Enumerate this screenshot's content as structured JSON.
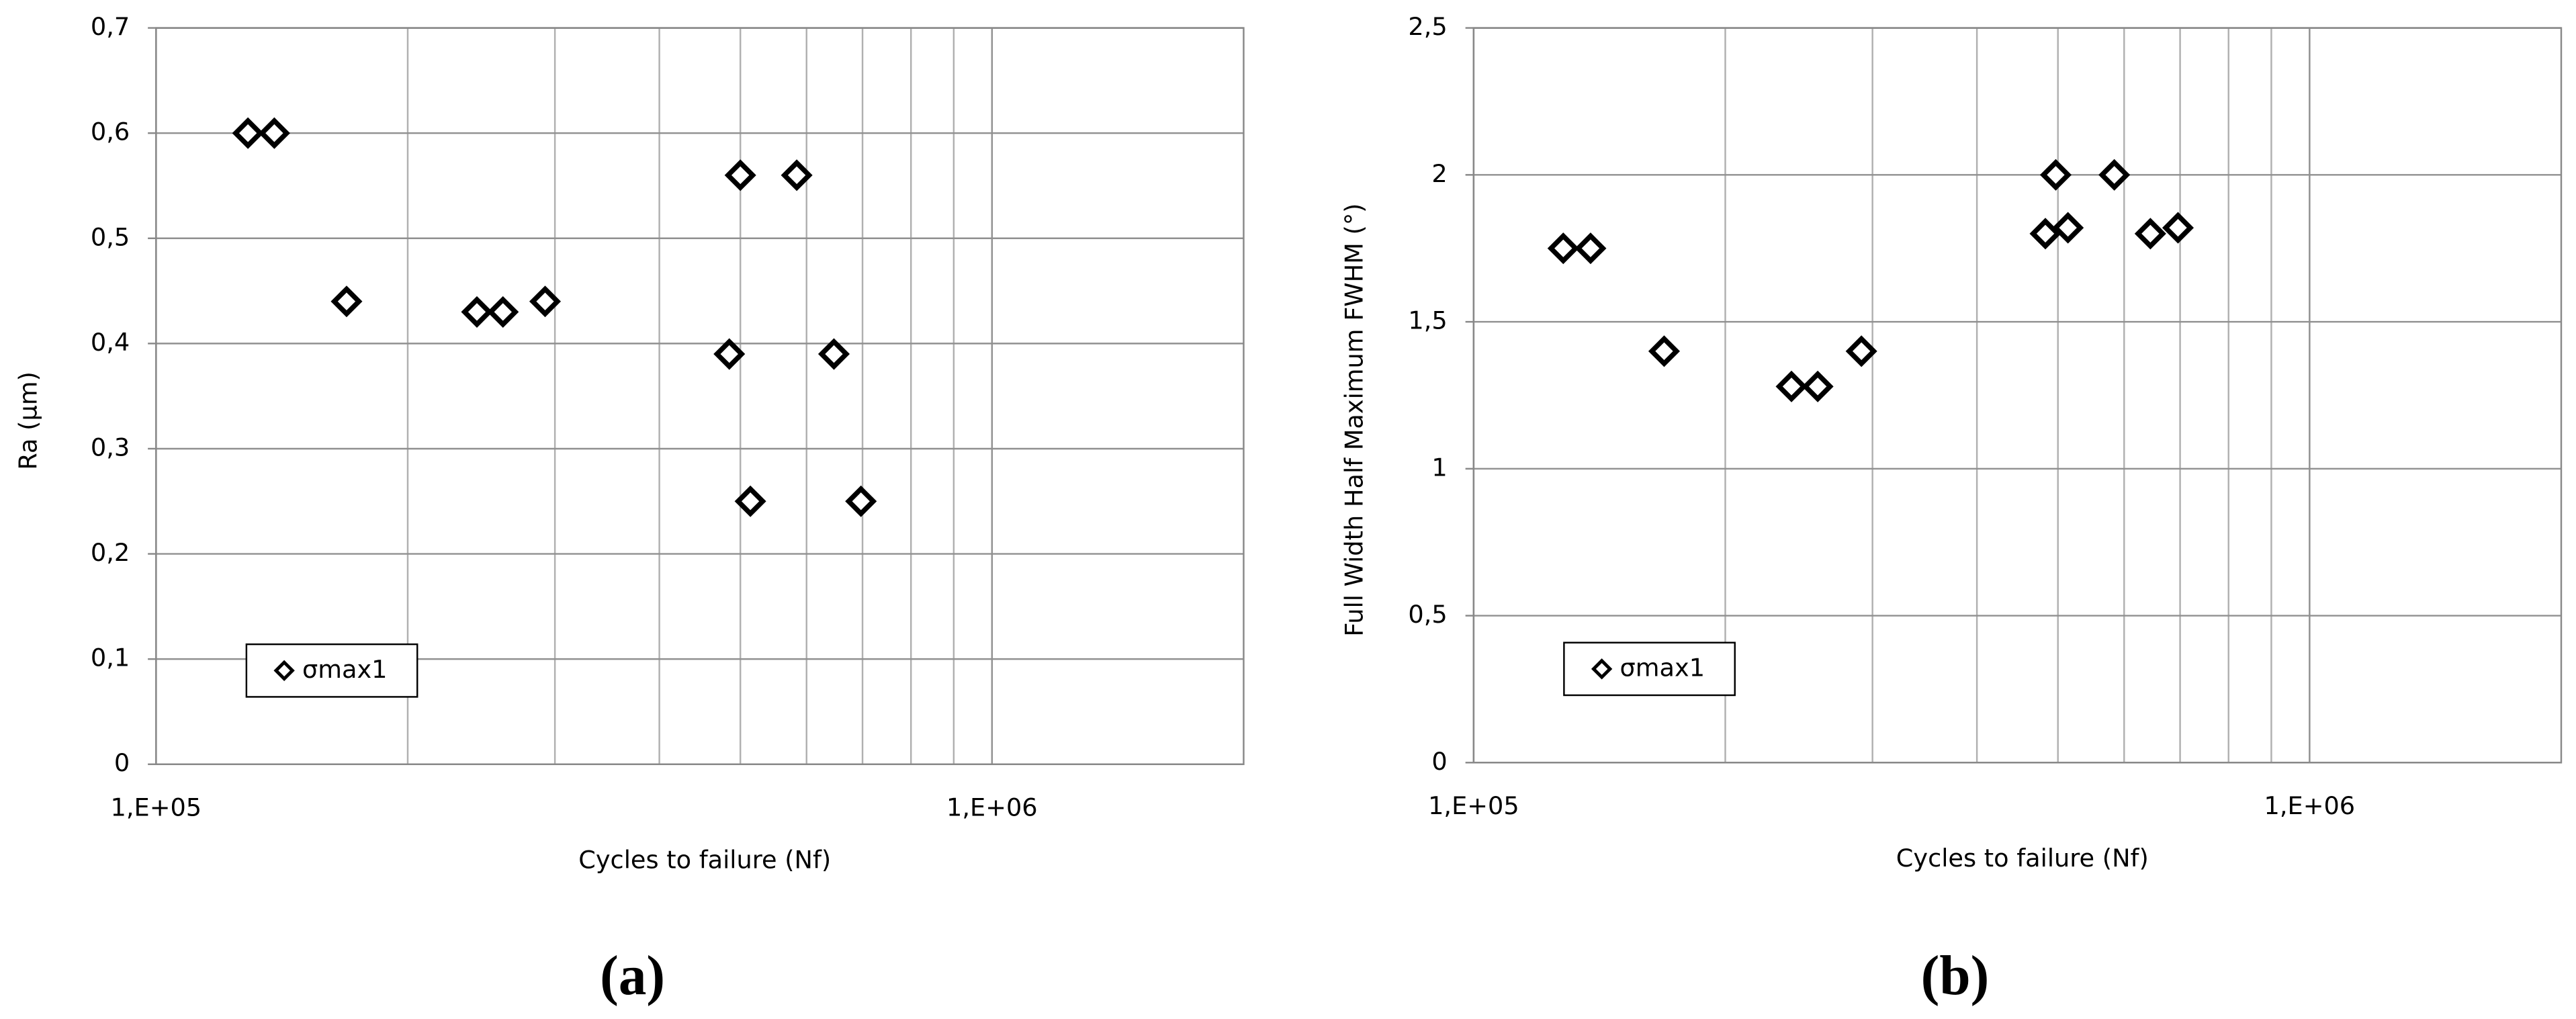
{
  "chart_data": [
    {
      "type": "scatter",
      "panel_label": "(a)",
      "xlabel": "Cycles to failure (Nf)",
      "ylabel": "Ra (µm)",
      "xscale": "log",
      "xlim": [
        100000,
        2000000
      ],
      "xticks": [
        {
          "value": 100000,
          "label": "1,E+05"
        },
        {
          "value": 1000000,
          "label": "1,E+06"
        }
      ],
      "ylim": [
        0,
        0.7
      ],
      "yticks": [
        0,
        {
          "value": 0.1,
          "label": "0,1"
        },
        {
          "value": 0.2,
          "label": "0,2"
        },
        {
          "value": 0.3,
          "label": "0,3"
        },
        {
          "value": 0.4,
          "label": "0,4"
        },
        {
          "value": 0.5,
          "label": "0,5"
        },
        {
          "value": 0.6,
          "label": "0,6"
        },
        {
          "value": 0.7,
          "label": "0,7"
        }
      ],
      "grid": true,
      "minor_grid": true,
      "legend": "lower left",
      "marker": "diamond",
      "series": [
        {
          "name": "σmax1",
          "color": "#000000",
          "x": [
            128800,
            138500,
            169000,
            242000,
            260000,
            292000,
            485000,
            500000,
            514000,
            584000,
            647000,
            697000
          ],
          "values": [
            0.6,
            0.6,
            0.44,
            0.43,
            0.43,
            0.44,
            0.39,
            0.56,
            0.25,
            0.56,
            0.39,
            0.25
          ]
        }
      ]
    },
    {
      "type": "scatter",
      "panel_label": "(b)",
      "xlabel": "Cycles to failure (Nf)",
      "ylabel": "Full Width Half Maximum FWHM (°)",
      "xscale": "log",
      "xlim": [
        100000,
        2000000
      ],
      "xticks": [
        {
          "value": 100000,
          "label": "1,E+05"
        },
        {
          "value": 1000000,
          "label": "1,E+06"
        }
      ],
      "ylim": [
        0,
        2.5
      ],
      "yticks": [
        0,
        {
          "value": 0.5,
          "label": "0,5"
        },
        1,
        {
          "value": 1.5,
          "label": "1,5"
        },
        2,
        {
          "value": 2.5,
          "label": "2,5"
        }
      ],
      "grid": true,
      "minor_grid": true,
      "legend": "lower left",
      "marker": "diamond",
      "series": [
        {
          "name": "σmax1",
          "color": "#000000",
          "x": [
            128000,
            138000,
            169000,
            240000,
            258000,
            291000,
            483000,
            497000,
            514000,
            584000,
            645000,
            696000
          ],
          "values": [
            1.75,
            1.75,
            1.4,
            1.28,
            1.28,
            1.4,
            1.8,
            2.0,
            1.82,
            2.0,
            1.8,
            1.82
          ]
        }
      ]
    }
  ]
}
